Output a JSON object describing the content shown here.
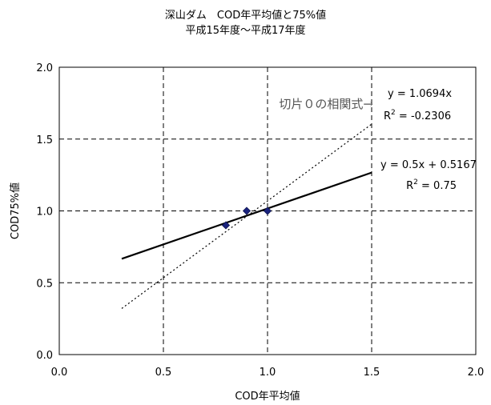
{
  "chart_data": {
    "type": "scatter",
    "title": "深山ダム　COD年平均値と75%値",
    "subtitle": "平成15年度～平成17年度",
    "xlabel": "COD年平均値",
    "ylabel": "COD75%値",
    "xlim": [
      0,
      2
    ],
    "ylim": [
      0,
      2
    ],
    "x_ticks": [
      "0.0",
      "0.5",
      "1.0",
      "1.5",
      "2.0"
    ],
    "y_ticks": [
      "0.0",
      "0.5",
      "1.0",
      "1.5",
      "2.0"
    ],
    "grid": "dashed",
    "points": [
      {
        "x": 0.8,
        "y": 0.9
      },
      {
        "x": 0.9,
        "y": 1.0
      },
      {
        "x": 1.0,
        "y": 1.0
      }
    ],
    "trendlines": [
      {
        "kind": "linear",
        "slope": 0.5,
        "intercept": 0.5167,
        "x_range": [
          0.3,
          1.5
        ],
        "style": "solid",
        "equation": "y = 0.5x + 0.5167",
        "r2_label": "R² = 0.75"
      },
      {
        "kind": "linear-through-origin",
        "slope": 1.0694,
        "intercept": 0,
        "x_range": [
          0.3,
          1.5
        ],
        "style": "dotted",
        "equation": "y = 1.0694x",
        "r2_label": "R² = -0.2306"
      }
    ],
    "annotation": "切片０の相関式→"
  }
}
